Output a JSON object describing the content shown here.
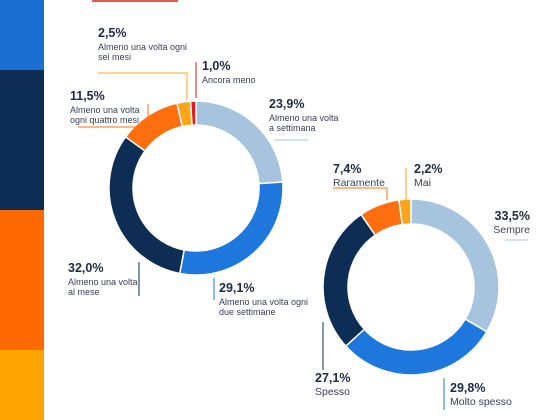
{
  "colors": {
    "band_blue": "#1b6fd1",
    "band_navy": "#0d2d55",
    "band_orange": "#ff6a00",
    "band_amber": "#ffa400",
    "slice_lightblue": "#a7c4df",
    "slice_blue": "#1d77dc",
    "slice_navy": "#0d2d55",
    "slice_orange": "#ff6f0f",
    "slice_amber": "#ffa418",
    "slice_red": "#e01e1e"
  },
  "chart_data": [
    {
      "type": "pie",
      "donut": true,
      "title": "",
      "slices": [
        {
          "value": 23.9,
          "pct_label": "23,9%",
          "label_lines": [
            "Almeno una volta",
            "a settimana"
          ],
          "color": "#a7c4df"
        },
        {
          "value": 29.1,
          "pct_label": "29,1%",
          "label_lines": [
            "Almeno una volta ogni",
            "due settimane"
          ],
          "color": "#1d77dc"
        },
        {
          "value": 32.0,
          "pct_label": "32,0%",
          "label_lines": [
            "Almeno una volta",
            "al mese"
          ],
          "color": "#0d2d55"
        },
        {
          "value": 11.5,
          "pct_label": "11,5%",
          "label_lines": [
            "Almeno una volta",
            "ogni quattro mesi"
          ],
          "color": "#ff6f0f"
        },
        {
          "value": 2.5,
          "pct_label": "2,5%",
          "label_lines": [
            "Almeno una volta ogni",
            "sei mesi"
          ],
          "color": "#ffa418"
        },
        {
          "value": 1.0,
          "pct_label": "1,0%",
          "label_lines": [
            "Ancora meno"
          ],
          "color": "#e01e1e"
        }
      ]
    },
    {
      "type": "pie",
      "donut": true,
      "title": "",
      "slices": [
        {
          "value": 33.5,
          "pct_label": "33,5%",
          "label_lines": [
            "Sempre"
          ],
          "color": "#a7c4df"
        },
        {
          "value": 29.8,
          "pct_label": "29,8%",
          "label_lines": [
            "Molto spesso"
          ],
          "color": "#1d77dc"
        },
        {
          "value": 27.1,
          "pct_label": "27,1%",
          "label_lines": [
            "Spesso"
          ],
          "color": "#0d2d55"
        },
        {
          "value": 7.4,
          "pct_label": "7,4%",
          "label_lines": [
            "Raramente"
          ],
          "color": "#ff6f0f"
        },
        {
          "value": 2.2,
          "pct_label": "2,2%",
          "label_lines": [
            "Mai"
          ],
          "color": "#ffa418"
        }
      ]
    }
  ]
}
